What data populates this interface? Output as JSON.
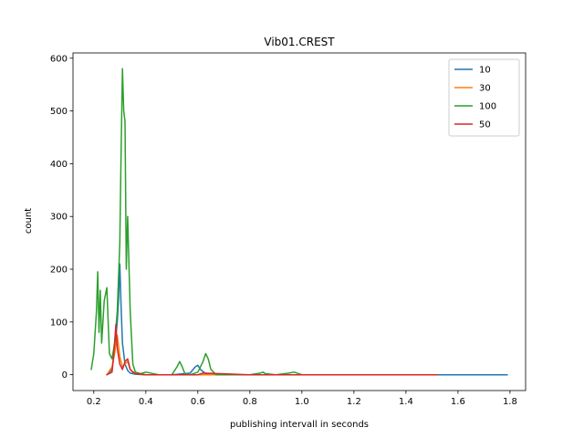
{
  "chart_data": {
    "type": "line",
    "title": "Vib01.CREST",
    "xlabel": "publishing intervall in seconds",
    "ylabel": "count",
    "xlim": [
      0.12,
      1.86
    ],
    "ylim": [
      -30,
      610
    ],
    "xticks": [
      0.2,
      0.4,
      0.6,
      0.8,
      1.0,
      1.2,
      1.4,
      1.6,
      1.8
    ],
    "xtick_labels": [
      "0.2",
      "0.4",
      "0.6",
      "0.8",
      "1.0",
      "1.2",
      "1.4",
      "1.6",
      "1.8"
    ],
    "yticks": [
      0,
      100,
      200,
      300,
      400,
      500,
      600
    ],
    "ytick_labels": [
      "0",
      "100",
      "200",
      "300",
      "400",
      "500",
      "600"
    ],
    "grid": false,
    "legend_position": "top-right",
    "series": [
      {
        "name": "10",
        "color": "#1f77b4",
        "x": [
          0.25,
          0.27,
          0.28,
          0.29,
          0.295,
          0.3,
          0.305,
          0.31,
          0.32,
          0.33,
          0.34,
          0.36,
          0.4,
          0.5,
          0.57,
          0.59,
          0.6,
          0.61,
          0.63,
          0.7,
          0.9,
          1.2,
          1.5,
          1.6,
          1.79
        ],
        "y": [
          0,
          10,
          45,
          100,
          140,
          210,
          130,
          60,
          20,
          8,
          3,
          1,
          0,
          0,
          3,
          15,
          18,
          10,
          2,
          0,
          0,
          0,
          0,
          0,
          0
        ]
      },
      {
        "name": "30",
        "color": "#ff7f0e",
        "x": [
          0.25,
          0.27,
          0.28,
          0.29,
          0.3,
          0.31,
          0.32,
          0.33,
          0.34,
          0.36,
          0.4,
          0.6,
          0.8,
          1.0,
          1.2,
          1.5
        ],
        "y": [
          0,
          15,
          40,
          75,
          35,
          15,
          20,
          25,
          10,
          2,
          0,
          0,
          0,
          0,
          0,
          0
        ]
      },
      {
        "name": "100",
        "color": "#2ca02c",
        "x": [
          0.19,
          0.2,
          0.21,
          0.215,
          0.22,
          0.225,
          0.23,
          0.24,
          0.25,
          0.26,
          0.27,
          0.28,
          0.29,
          0.3,
          0.305,
          0.31,
          0.315,
          0.32,
          0.325,
          0.33,
          0.34,
          0.35,
          0.36,
          0.38,
          0.4,
          0.45,
          0.5,
          0.52,
          0.53,
          0.54,
          0.55,
          0.57,
          0.6,
          0.62,
          0.63,
          0.64,
          0.65,
          0.67,
          0.7,
          0.8,
          0.84,
          0.85,
          0.86,
          0.9,
          0.95,
          0.97,
          1.0,
          1.1
        ],
        "y": [
          10,
          40,
          120,
          195,
          80,
          160,
          60,
          140,
          165,
          40,
          30,
          60,
          120,
          250,
          420,
          580,
          500,
          480,
          200,
          300,
          120,
          20,
          5,
          2,
          5,
          0,
          0,
          15,
          25,
          15,
          2,
          0,
          5,
          25,
          40,
          30,
          10,
          0,
          0,
          0,
          3,
          5,
          2,
          0,
          3,
          5,
          0,
          0
        ]
      },
      {
        "name": "50",
        "color": "#d62728",
        "x": [
          0.25,
          0.27,
          0.275,
          0.28,
          0.285,
          0.29,
          0.3,
          0.31,
          0.32,
          0.33,
          0.34,
          0.35,
          0.36,
          0.4,
          0.6,
          0.62,
          0.8,
          0.9,
          1.0,
          1.2,
          1.4,
          1.52
        ],
        "y": [
          0,
          5,
          30,
          60,
          95,
          50,
          20,
          10,
          25,
          30,
          10,
          5,
          2,
          0,
          0,
          3,
          0,
          0,
          0,
          0,
          0,
          0
        ]
      }
    ]
  }
}
